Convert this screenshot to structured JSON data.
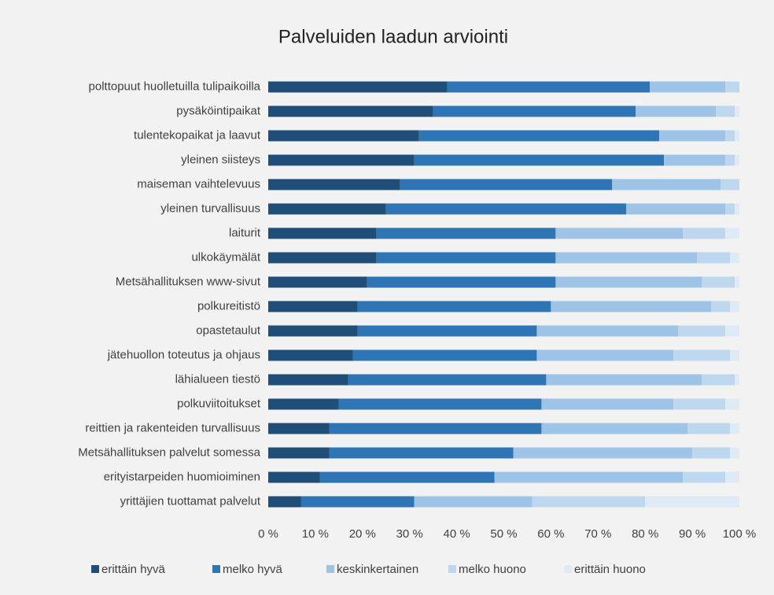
{
  "chart_data": {
    "type": "stacked_barh",
    "title": "Palveluiden laadun arviointi",
    "categories": [
      "polttopuut huolletuilla tulipaikoilla",
      "pysäköintipaikat",
      "tulentekopaikat ja laavut",
      "yleinen siisteys",
      "maiseman vaihtelevuus",
      "yleinen turvallisuus",
      "laiturit",
      "ulkokäymälät",
      "Metsähallituksen www-sivut",
      "polkureitistö",
      "opastetaulut",
      "jätehuollon toteutus ja ohjaus",
      "lähialueen tiestö",
      "polkuviitoitukset",
      "reittien ja rakenteiden turvallisuus",
      "Metsähallituksen palvelut somessa",
      "erityistarpeiden huomioiminen",
      "yrittäjien tuottamat palvelut"
    ],
    "series": [
      {
        "name": "erittäin hyvä",
        "color": "#1f4e79",
        "values": [
          38,
          35,
          32,
          31,
          28,
          25,
          23,
          23,
          21,
          19,
          19,
          18,
          17,
          15,
          13,
          13,
          11,
          7
        ]
      },
      {
        "name": "melko hyvä",
        "color": "#2e75b6",
        "values": [
          43,
          43,
          51,
          53,
          45,
          51,
          38,
          38,
          40,
          41,
          38,
          39,
          42,
          43,
          45,
          39,
          37,
          24
        ]
      },
      {
        "name": "keskinkertainen",
        "color": "#9dc3e6",
        "values": [
          16,
          17,
          14,
          13,
          23,
          21,
          27,
          30,
          31,
          34,
          30,
          29,
          33,
          28,
          31,
          38,
          40,
          25
        ]
      },
      {
        "name": "melko huono",
        "color": "#bdd7ee",
        "values": [
          3,
          4,
          2,
          2,
          4,
          2,
          9,
          7,
          7,
          4,
          10,
          12,
          7,
          11,
          9,
          8,
          9,
          24
        ]
      },
      {
        "name": "erittäin huono",
        "color": "#deebf7",
        "values": [
          0,
          1,
          1,
          1,
          0,
          1,
          3,
          2,
          1,
          2,
          3,
          2,
          1,
          3,
          2,
          2,
          3,
          20
        ]
      }
    ],
    "xlim": [
      0,
      100
    ],
    "xticks": [
      {
        "value": 0,
        "label": "0 %"
      },
      {
        "value": 10,
        "label": "10 %"
      },
      {
        "value": 20,
        "label": "20 %"
      },
      {
        "value": 30,
        "label": "30 %"
      },
      {
        "value": 40,
        "label": "40 %"
      },
      {
        "value": 50,
        "label": "50 %"
      },
      {
        "value": 60,
        "label": "60 %"
      },
      {
        "value": 70,
        "label": "70 %"
      },
      {
        "value": 80,
        "label": "80 %"
      },
      {
        "value": 90,
        "label": "90 %"
      },
      {
        "value": 100,
        "label": "100 %"
      }
    ],
    "grid": false,
    "legend": "bottom"
  }
}
